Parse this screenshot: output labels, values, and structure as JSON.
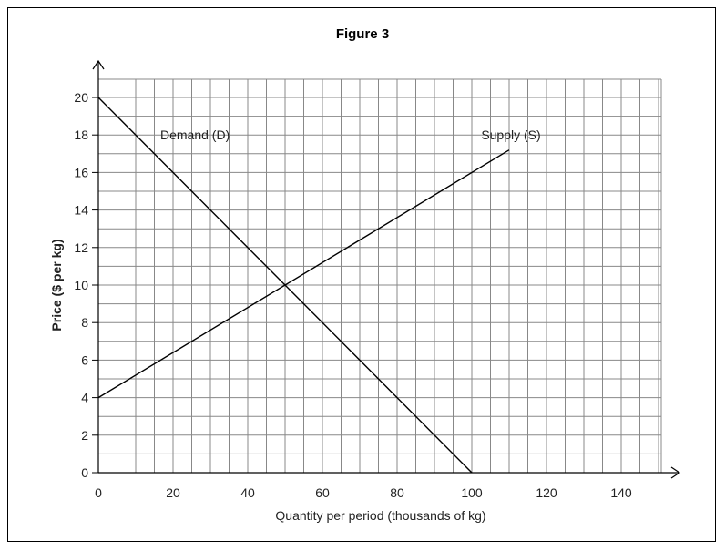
{
  "chart_data": {
    "type": "line",
    "title": "Figure 3",
    "xlabel": "Quantity per period (thousands of kg)",
    "ylabel": "Price ($ per kg)",
    "xlim": [
      0,
      150
    ],
    "ylim": [
      0,
      21
    ],
    "x_ticks": [
      0,
      20,
      40,
      60,
      80,
      100,
      120,
      140
    ],
    "y_ticks": [
      0,
      2,
      4,
      6,
      8,
      10,
      12,
      14,
      16,
      18,
      20
    ],
    "grid": true,
    "series": [
      {
        "name": "Demand (D)",
        "x": [
          0,
          100
        ],
        "y": [
          20,
          0
        ],
        "color": "#000000"
      },
      {
        "name": "Supply (S)",
        "x": [
          0,
          110
        ],
        "y": [
          4,
          17.2
        ],
        "color": "#000000"
      }
    ]
  }
}
